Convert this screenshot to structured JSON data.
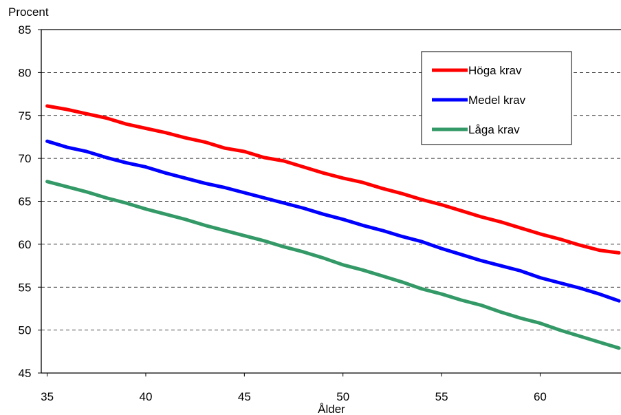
{
  "chart_data": {
    "type": "line",
    "title": "",
    "ylabel": "Procent",
    "xlabel": "Ålder",
    "xlim": [
      34.7,
      64.1
    ],
    "ylim": [
      45,
      85
    ],
    "xticks": [
      35,
      40,
      45,
      50,
      55,
      60
    ],
    "yticks": [
      45,
      50,
      55,
      60,
      65,
      70,
      75,
      80,
      85
    ],
    "grid": "horizontal-dashed",
    "legend_position": "top-right",
    "x": [
      35,
      36,
      37,
      38,
      39,
      40,
      41,
      42,
      43,
      44,
      45,
      46,
      47,
      48,
      49,
      50,
      51,
      52,
      53,
      54,
      55,
      56,
      57,
      58,
      59,
      60,
      61,
      62,
      63,
      64
    ],
    "series": [
      {
        "name": "Höga krav",
        "color": "#ff0000",
        "values": [
          76.1,
          75.7,
          75.2,
          74.7,
          74.0,
          73.5,
          73.0,
          72.4,
          71.9,
          71.2,
          70.8,
          70.1,
          69.7,
          69.0,
          68.3,
          67.7,
          67.2,
          66.5,
          65.9,
          65.2,
          64.6,
          63.9,
          63.2,
          62.6,
          61.9,
          61.2,
          60.6,
          59.9,
          59.3,
          59.0
        ]
      },
      {
        "name": "Medel krav",
        "color": "#0000ff",
        "values": [
          72.0,
          71.3,
          70.8,
          70.1,
          69.5,
          69.0,
          68.3,
          67.7,
          67.1,
          66.6,
          66.0,
          65.4,
          64.8,
          64.2,
          63.5,
          62.9,
          62.2,
          61.6,
          60.9,
          60.3,
          59.5,
          58.8,
          58.1,
          57.5,
          56.9,
          56.1,
          55.5,
          54.9,
          54.2,
          53.4
        ]
      },
      {
        "name": "Låga krav",
        "color": "#339966",
        "values": [
          67.3,
          66.7,
          66.1,
          65.4,
          64.8,
          64.1,
          63.5,
          62.9,
          62.2,
          61.6,
          61.0,
          60.4,
          59.7,
          59.1,
          58.4,
          57.6,
          57.0,
          56.3,
          55.6,
          54.8,
          54.2,
          53.5,
          52.9,
          52.1,
          51.4,
          50.8,
          50.0,
          49.3,
          48.6,
          47.9
        ]
      }
    ]
  }
}
